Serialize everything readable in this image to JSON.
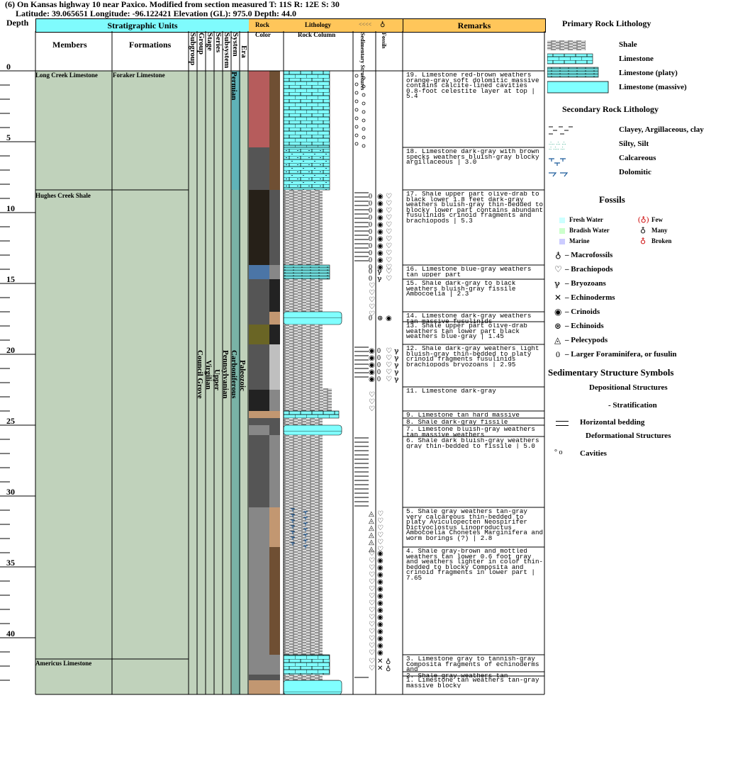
{
  "header": {
    "line1": "(6) On Kansas highway 10 near Paxico. Modified from section measured  T: 11S R: 12E S: 30",
    "line2": "Latitude: 39.065651 Longitude: -96.122421 Elevation (GL): 975.0 Depth: 44.0"
  },
  "columns": {
    "depth": "Depth",
    "stratigraphic_units": "Stratigraphic Units",
    "members": "Members",
    "formations": "Formations",
    "subgroup": "Subgroup",
    "group": "Group",
    "stage": "Stage",
    "series": "Series",
    "subsystem": "Subsystem",
    "system": "System",
    "era": "Era",
    "rock_color": "Rock\nColor",
    "lithology": "Lithology",
    "rock_column": "Rock Column",
    "sedimentary_structures": "Sedimentary\nStructures",
    "fossils": "Fossils",
    "remarks": "Remarks"
  },
  "depth_ticks": [
    "0",
    "5",
    "10",
    "15",
    "20",
    "25",
    "30",
    "35",
    "40"
  ],
  "members": [
    {
      "name": "Long Creek Limestone",
      "depth": 0
    },
    {
      "name": "Hughes Creek Shale",
      "depth": 8.5
    },
    {
      "name": "Americus Limestone",
      "depth": 41.5
    }
  ],
  "formations": [
    {
      "name": "Foraker Limestone",
      "depth": 0
    }
  ],
  "vertical_units": {
    "subgroup": "",
    "group": "Council Grove",
    "stage": "Virgilian",
    "series": "Upper",
    "subsystem": "Pennsylvanian",
    "system": "Carboniferous",
    "era": "Paleozoic",
    "system_top": "Permian"
  },
  "colors": {
    "limestone": "#80ffff",
    "shale_gray": "#dddddd",
    "rock_red": "#b65c5c",
    "rock_brown": "#6f4f33",
    "rock_tan": "#c29771",
    "rock_darkgray": "#555555",
    "rock_black": "#1f1c17",
    "rock_blue": "#4b75a6",
    "rock_olive": "#6a6525",
    "rock_gray": "#878787",
    "rock_lightgray": "#bfbfbf",
    "green_fill": "#c0d2bb",
    "header_cyan": "#7ffbfd",
    "header_orange": "#ffc65a"
  },
  "rock_colors": [
    {
      "top": 0,
      "bot": 5.4,
      "left": "#b65c5c",
      "right": "#6f4f33"
    },
    {
      "top": 5.4,
      "bot": 8.4,
      "left": "#555555",
      "right": "#6f4f33"
    },
    {
      "top": 8.4,
      "bot": 13.7,
      "left": "#262018",
      "right": "#555555"
    },
    {
      "top": 13.7,
      "bot": 14.7,
      "left": "#4b75a6",
      "right": "#878787"
    },
    {
      "top": 14.7,
      "bot": 17.0,
      "left": "#555555",
      "right": "#222222"
    },
    {
      "top": 17.0,
      "bot": 17.9,
      "left": "#555555",
      "right": "#c29771"
    },
    {
      "top": 17.9,
      "bot": 19.3,
      "left": "#6a6525",
      "right": "#222222"
    },
    {
      "top": 19.3,
      "bot": 22.5,
      "left": "#555555",
      "right": "#bfbfbf"
    },
    {
      "top": 22.5,
      "bot": 24.0,
      "left": "#222222",
      "right": "#878787"
    },
    {
      "top": 24.0,
      "bot": 24.5,
      "left": "#c29771",
      "right": "#c29771"
    },
    {
      "top": 24.5,
      "bot": 25.0,
      "left": "#555555",
      "right": "#555555"
    },
    {
      "top": 25.0,
      "bot": 25.7,
      "left": "#878787",
      "right": "#555555"
    },
    {
      "top": 25.7,
      "bot": 30.8,
      "left": "#555555",
      "right": "#878787"
    },
    {
      "top": 30.8,
      "bot": 33.6,
      "left": "#878787",
      "right": "#c29771"
    },
    {
      "top": 33.6,
      "bot": 41.2,
      "left": "#878787",
      "right": "#6f4f33"
    },
    {
      "top": 41.2,
      "bot": 42.6,
      "left": "#878787",
      "right": "#878787"
    },
    {
      "top": 42.6,
      "bot": 43.0,
      "left": "#555555",
      "right": "#555555"
    },
    {
      "top": 43.0,
      "bot": 44.0,
      "left": "#c29771",
      "right": "#c29771"
    }
  ],
  "lithology": [
    {
      "top": 0,
      "bot": 5.4,
      "type": "limestone",
      "width": 0.55
    },
    {
      "top": 5.4,
      "bot": 8.4,
      "type": "limestone-clay",
      "width": 0.55
    },
    {
      "top": 8.4,
      "bot": 13.7,
      "type": "shale",
      "width": 0.55
    },
    {
      "top": 13.7,
      "bot": 14.7,
      "type": "limestone-platy",
      "width": 0.55
    },
    {
      "top": 14.7,
      "bot": 17.0,
      "type": "shale",
      "width": 0.55
    },
    {
      "top": 17.0,
      "bot": 17.9,
      "type": "limestone-massive",
      "width": 0.72
    },
    {
      "top": 17.9,
      "bot": 19.3,
      "type": "shale",
      "width": 0.55
    },
    {
      "top": 19.3,
      "bot": 22.4,
      "type": "shale",
      "width": 0.55
    },
    {
      "top": 22.4,
      "bot": 24.0,
      "type": "shale",
      "width": 0.68
    },
    {
      "top": 24.0,
      "bot": 24.5,
      "type": "limestone",
      "width": 0.68
    },
    {
      "top": 24.5,
      "bot": 25.0,
      "type": "shale",
      "width": 0.55
    },
    {
      "top": 25.0,
      "bot": 25.7,
      "type": "limestone-massive",
      "width": 0.72
    },
    {
      "top": 25.7,
      "bot": 30.8,
      "type": "shale",
      "width": 0.55
    },
    {
      "top": 30.8,
      "bot": 33.6,
      "type": "shale-calc",
      "width": 0.55
    },
    {
      "top": 33.6,
      "bot": 41.2,
      "type": "shale",
      "width": 0.55
    },
    {
      "top": 41.2,
      "bot": 42.6,
      "type": "limestone",
      "width": 0.55
    },
    {
      "top": 42.6,
      "bot": 43.0,
      "type": "shale",
      "width": 0.55
    },
    {
      "top": 43.0,
      "bot": 44.0,
      "type": "limestone-massive",
      "width": 0.72
    }
  ],
  "remarks": [
    {
      "depth": 0.0,
      "text": "19. Limestone red-brown weathers orange-gray soft dolomitic massive contains calcite-lined cavities 0.8-foot celestite layer at top | 5.4"
    },
    {
      "depth": 5.4,
      "text": "18. Limestone dark-gray with brown specks weathers bluish-gray blocky argillaceous | 3.0"
    },
    {
      "depth": 8.4,
      "text": "17. Shale upper part olive-drab to black lower 1.8 feet dark-gray weathers bluish-gray thin-bedded to blocky lower part contains abundant fusulinids crinoid fragments and brachiopods | 5.3"
    },
    {
      "depth": 13.7,
      "text": "16. Limestone blue-gray weathers tan upper part"
    },
    {
      "depth": 14.7,
      "text": "15. Shale dark-gray to black weathers bluish-gray fissile Ambocoelia | 2.3"
    },
    {
      "depth": 17.0,
      "text": "14. Limestone dark-gray weathers tan massive fusulinids"
    },
    {
      "depth": 17.7,
      "text": "13. Shale upper part olive-drab weathers tan lower part black weathers blue-gray | 1.45"
    },
    {
      "depth": 19.3,
      "text": "12. Shale dark-gray weathers light bluish-gray thin-bedded to platy crinoid fragments fusulinids brachiopods bryozoans | 2.95"
    },
    {
      "depth": 22.3,
      "text": "11. Limestone dark-gray"
    },
    {
      "depth": 24.0,
      "text": "9. Limestone tan hard massive"
    },
    {
      "depth": 24.5,
      "text": "8. Shale dark-gray fissile"
    },
    {
      "depth": 25.0,
      "text": "7. Limestone bluish-gray weathers tan massive weathers"
    },
    {
      "depth": 25.8,
      "text": "6. Shale dark bluish-gray weathers gray thin-bedded to fissile | 5.0"
    },
    {
      "depth": 30.8,
      "text": "5. Shale gray weathers tan-gray very calcareous thin-bedded to platy Aviculopecten Neospirifer Dictyoclostus Linoproductus Ambocoelia Chonetes Marginifera and worm borings (?) | 2.8"
    },
    {
      "depth": 33.6,
      "text": "4. Shale gray-brown and mottled weathers tan lower 0.6 foot gray and weathers lighter in color thin-bedded to blocky Composita and crinoid fragments in lower part | 7.65"
    },
    {
      "depth": 41.2,
      "text": "3. Limestone gray to tannish-gray Composita fragments of echinoderms and"
    },
    {
      "depth": 42.4,
      "text": "2. Shale gray weathers tan"
    },
    {
      "depth": 42.7,
      "text": "1. Limestone tan weathers tan-gray massive blocky"
    }
  ],
  "legend": {
    "primary_title": "Primary Rock Lithology",
    "primary": [
      "Shale",
      "Limestone",
      "Limestone (platy)",
      "Limestone (massive)"
    ],
    "secondary_title": "Secondary Rock Lithology",
    "secondary": [
      "Clayey, Argillaceous, clay",
      "Silty, Silt",
      "Calcareous",
      "Dolomitic"
    ],
    "fossils_title": "Fossils",
    "fossil_env": [
      "Fresh Water",
      "Bradish Water",
      "Marine"
    ],
    "fossil_abundance": [
      "Few",
      "Many",
      "Broken"
    ],
    "fossil_types": [
      "– Macrofossils",
      "– Brachiopods",
      "– Bryozoans",
      "– Echinoderms",
      "– Crinoids",
      "– Echinoids",
      "– Pelecypods",
      "– Larger Foraminifera, or fusulin"
    ],
    "sed_title": "Sedimentary Structure Symbols",
    "depositional": "Depositional Structures",
    "stratification": "- Stratification",
    "horizontal": "Horizontal bedding",
    "deformational": "Deformational Structures",
    "cavities": "Cavities"
  }
}
